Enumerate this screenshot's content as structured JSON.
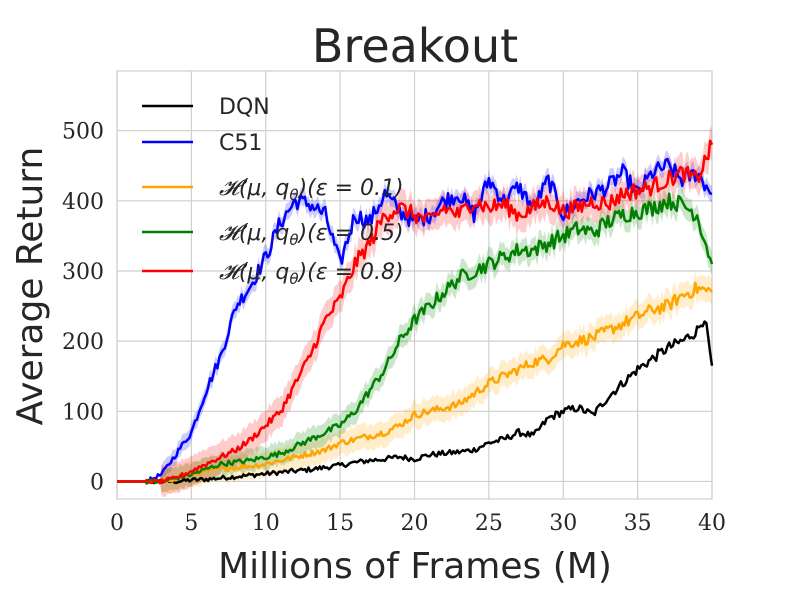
{
  "chart_data": {
    "type": "line",
    "title": "Breakout",
    "xlabel": "Millions of Frames (M)",
    "ylabel": "Average Return",
    "xlim": [
      0,
      40
    ],
    "ylim": [
      -25,
      585
    ],
    "xticks": [
      0,
      5,
      10,
      15,
      20,
      25,
      30,
      35,
      40
    ],
    "yticks": [
      0,
      100,
      200,
      300,
      400,
      500
    ],
    "grid": true,
    "legend_position": "upper-left",
    "series": [
      {
        "name": "DQN",
        "color": "#000000",
        "band": 0,
        "x": [
          0,
          2,
          4,
          5,
          6,
          7,
          8,
          9,
          10,
          11,
          12,
          13,
          14,
          15,
          16,
          17,
          18,
          19,
          20,
          21,
          22,
          23,
          24,
          25,
          26,
          27,
          28,
          29,
          30,
          31,
          32,
          33,
          34,
          35,
          36,
          37,
          38,
          39,
          39.5,
          40
        ],
        "y": [
          0,
          0,
          0,
          2,
          3,
          5,
          7,
          9,
          11,
          13,
          15,
          17,
          20,
          23,
          27,
          30,
          32,
          35,
          32,
          38,
          40,
          42,
          45,
          55,
          60,
          70,
          65,
          90,
          100,
          105,
          95,
          120,
          140,
          160,
          175,
          190,
          200,
          215,
          235,
          165
        ]
      },
      {
        "name": "C51",
        "color": "#0000ff",
        "band": 12,
        "x": [
          0,
          2,
          3,
          4,
          5,
          6,
          7,
          8,
          9,
          10,
          11,
          12,
          13,
          14,
          15,
          16,
          17,
          18,
          19,
          20,
          21,
          22,
          23,
          24,
          25,
          26,
          27,
          28,
          29,
          30,
          31,
          32,
          33,
          34,
          35,
          36,
          37,
          38,
          39,
          40
        ],
        "y": [
          0,
          0,
          10,
          40,
          70,
          130,
          180,
          250,
          280,
          320,
          370,
          400,
          395,
          380,
          310,
          380,
          370,
          410,
          385,
          370,
          380,
          400,
          410,
          380,
          430,
          400,
          420,
          390,
          430,
          380,
          400,
          410,
          420,
          440,
          410,
          440,
          450,
          430,
          440,
          410
        ]
      },
      {
        "name": "H(μ, qθ)(ε = 0.1)",
        "color": "#ffa500",
        "band": 18,
        "x": [
          0,
          3,
          5,
          7,
          9,
          10,
          11,
          12,
          13,
          14,
          15,
          16,
          17,
          18,
          19,
          20,
          21,
          22,
          23,
          24,
          25,
          26,
          27,
          28,
          29,
          30,
          31,
          32,
          33,
          34,
          35,
          36,
          37,
          38,
          39,
          40
        ],
        "y": [
          0,
          0,
          10,
          18,
          22,
          25,
          30,
          35,
          40,
          45,
          55,
          60,
          65,
          70,
          80,
          95,
          100,
          105,
          110,
          125,
          140,
          150,
          160,
          170,
          175,
          195,
          200,
          205,
          215,
          225,
          235,
          245,
          250,
          265,
          275,
          270
        ]
      },
      {
        "name": "H(μ, qθ)(ε = 0.5)",
        "color": "#008000",
        "band": 16,
        "x": [
          0,
          3,
          5,
          7,
          9,
          10,
          11,
          12,
          13,
          14,
          15,
          16,
          17,
          18,
          19,
          20,
          21,
          22,
          23,
          24,
          25,
          26,
          27,
          28,
          29,
          30,
          31,
          32,
          33,
          34,
          35,
          36,
          37,
          38,
          39,
          40
        ],
        "y": [
          0,
          0,
          10,
          25,
          30,
          35,
          40,
          50,
          60,
          70,
          80,
          100,
          130,
          160,
          200,
          230,
          250,
          270,
          290,
          300,
          310,
          320,
          330,
          330,
          340,
          350,
          360,
          355,
          370,
          380,
          385,
          390,
          400,
          395,
          380,
          310
        ]
      },
      {
        "name": "H(μ, qθ)(ε = 0.8)",
        "color": "#ff0000",
        "band": 22,
        "x": [
          0,
          3,
          4,
          5,
          6,
          7,
          8,
          9,
          10,
          11,
          12,
          13,
          14,
          15,
          16,
          17,
          18,
          19,
          20,
          21,
          22,
          23,
          24,
          25,
          26,
          27,
          28,
          29,
          30,
          31,
          32,
          33,
          34,
          35,
          36,
          37,
          38,
          39,
          40
        ],
        "y": [
          0,
          0,
          5,
          15,
          25,
          35,
          45,
          60,
          80,
          100,
          140,
          180,
          230,
          260,
          310,
          340,
          380,
          390,
          380,
          370,
          390,
          380,
          400,
          390,
          395,
          380,
          390,
          400,
          385,
          390,
          400,
          395,
          410,
          415,
          420,
          430,
          440,
          430,
          480
        ]
      }
    ],
    "legend_labels": [
      [
        "DQN"
      ],
      [
        "C51"
      ],
      [
        "𝓗(μ, q",
        "θ",
        ")(ε = 0.1)"
      ],
      [
        "𝓗(μ, q",
        "θ",
        ")(ε = 0.5)"
      ],
      [
        "𝓗(μ, q",
        "θ",
        ")(ε = 0.8)"
      ]
    ]
  }
}
